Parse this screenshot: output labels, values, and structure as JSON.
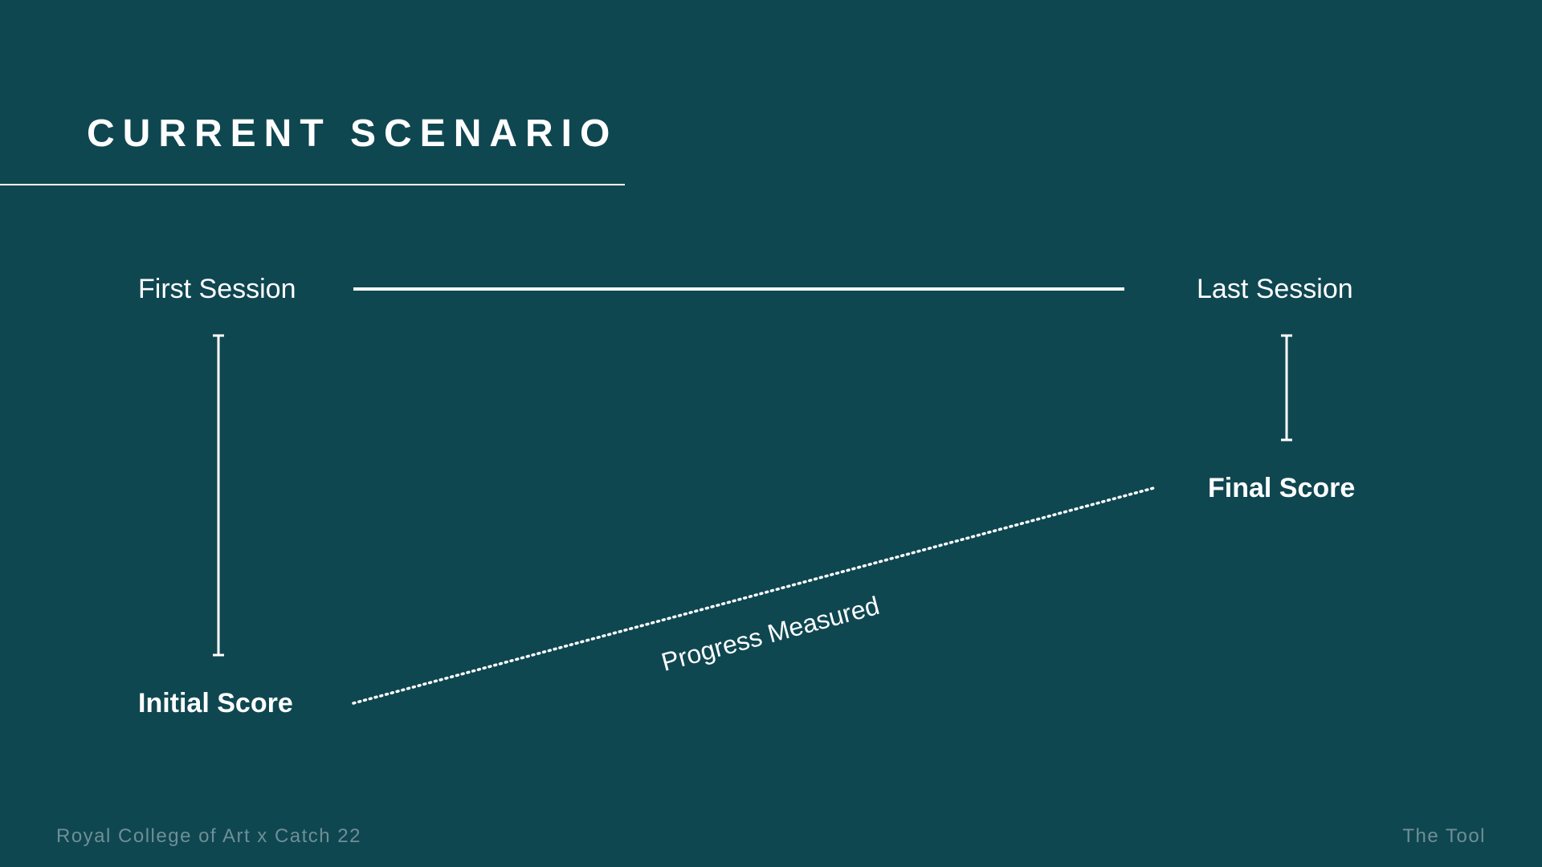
{
  "slide": {
    "title": "CURRENT SCENARIO",
    "labels": {
      "first_session": "First Session",
      "last_session": "Last Session",
      "final_score": "Final Score",
      "initial_score": "Initial Score",
      "progress_measured": "Progress Measured"
    },
    "footer": {
      "left": "Royal College of Art x Catch 22",
      "right": "The Tool"
    },
    "colors": {
      "background": "#0f4751",
      "foreground": "#ffffff",
      "footer_text": "#6e8f96"
    }
  }
}
